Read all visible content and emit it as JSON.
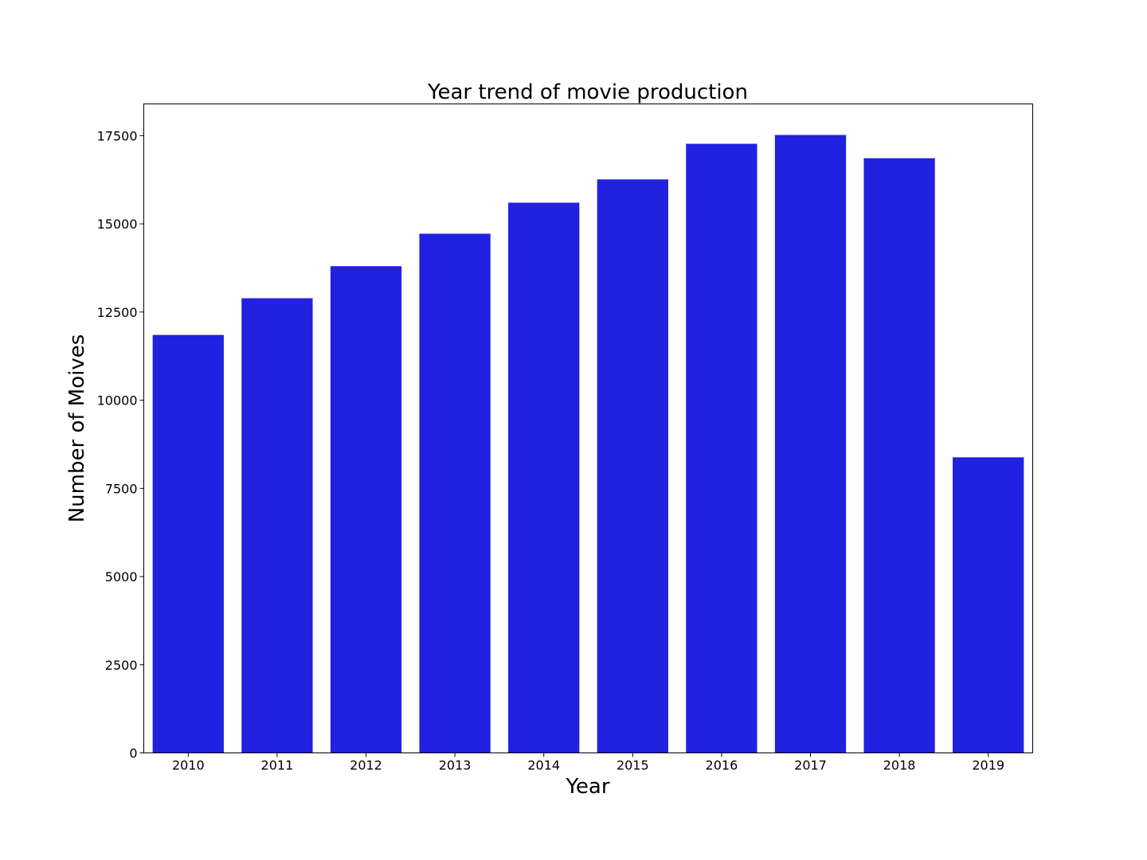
{
  "chart_data": {
    "type": "bar",
    "title": "Year trend of movie production",
    "xlabel": "Year",
    "ylabel": "Number of Moives",
    "categories": [
      "2010",
      "2011",
      "2012",
      "2013",
      "2014",
      "2015",
      "2016",
      "2017",
      "2018",
      "2019"
    ],
    "values": [
      11850,
      12890,
      13800,
      14720,
      15600,
      16260,
      17270,
      17520,
      16860,
      8380
    ],
    "ylim": [
      0,
      18400
    ],
    "yticks": [
      0,
      2500,
      5000,
      7500,
      10000,
      12500,
      15000,
      17500
    ],
    "bar_color": "#2121df",
    "grid": false,
    "legend": false
  }
}
